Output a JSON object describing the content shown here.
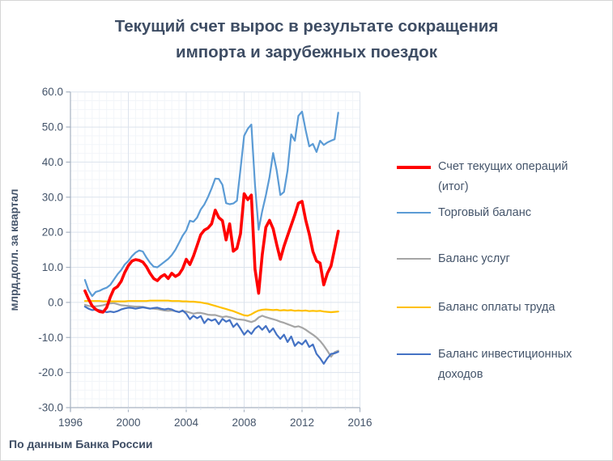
{
  "title": {
    "full": "Текущий счет вырос в результате сокращения импорта и зарубежных поездок",
    "line1": "Текущий счет вырос в результате сокращения",
    "line2": "импорта и зарубежных поездок"
  },
  "source_note": "По данным Банка России",
  "colors": {
    "text": "#44546a",
    "grid_major": "#dce3ed",
    "grid_minor": "#f2f5f9",
    "axis": "#a7b2c1",
    "current_account": "#ff0000",
    "trade_balance": "#5b9bd5",
    "services_balance": "#a5a5a5",
    "labor_balance": "#ffc000",
    "investment_income_balance": "#4472c4"
  },
  "chart_data": {
    "type": "line",
    "title": "Текущий счет вырос в результате сокращения импорта и зарубежных поездок",
    "title_lines": [
      "Текущий счет вырос в результате сокращения",
      "импорта и зарубежных поездок"
    ],
    "xlabel": "",
    "ylabel": "млрд.долл. за квартал",
    "x_axis": {
      "min": 1996,
      "max": 2016,
      "major_step": 4,
      "minor_step": 0.5,
      "tick_labels": [
        "1996",
        "2000",
        "2004",
        "2008",
        "2012",
        "2016"
      ],
      "tick_values": [
        1996,
        2000,
        2004,
        2008,
        2012,
        2016
      ]
    },
    "y_axis": {
      "label": "млрд.долл. за квартал",
      "min": -30,
      "max": 60,
      "major_step": 10,
      "minor_step": 2.5,
      "tick_labels": [
        "60.0",
        "50.0",
        "40.0",
        "30.0",
        "20.0",
        "10.0",
        "0.0",
        "-10.0",
        "-20.0",
        "-30.0"
      ],
      "tick_values": [
        60,
        50,
        40,
        30,
        20,
        10,
        0,
        -10,
        -20,
        -30
      ]
    },
    "grid": "major+minor",
    "legend_position": "right",
    "x_start": 1997.0,
    "x_step": 0.25,
    "x_unit": "quarter (year fraction)",
    "series": [
      {
        "key": "current-account",
        "name": "Счет текущих операций (итог)",
        "color": "#ff0000",
        "stroke_width": 3.6,
        "values": [
          3.3,
          1.0,
          -1.0,
          -2.0,
          -2.6,
          -2.8,
          -1.5,
          1.5,
          3.8,
          4.5,
          6.0,
          8.5,
          10.5,
          11.8,
          12.2,
          12.0,
          11.5,
          10.2,
          8.3,
          6.8,
          6.2,
          7.3,
          7.9,
          6.8,
          8.3,
          7.4,
          8.0,
          9.6,
          12.3,
          10.8,
          13.2,
          16.2,
          19.3,
          20.6,
          21.2,
          22.4,
          26.3,
          24.2,
          23.3,
          17.8,
          22.4,
          14.6,
          15.4,
          19.6,
          31.0,
          29.3,
          30.6,
          9.5,
          2.6,
          13.5,
          21.4,
          23.4,
          21.0,
          16.5,
          12.3,
          16.0,
          19.0,
          22.0,
          25.0,
          28.3,
          28.8,
          23.5,
          19.5,
          14.5,
          11.8,
          11.2,
          5.0,
          8.3,
          10.4,
          15.2,
          20.3
        ]
      },
      {
        "key": "trade-balance",
        "name": "Торговый баланс",
        "color": "#5b9bd5",
        "stroke_width": 2.2,
        "values": [
          6.4,
          3.5,
          1.8,
          3.0,
          3.3,
          3.8,
          4.2,
          5.0,
          6.5,
          8.0,
          9.2,
          10.8,
          11.8,
          13.2,
          14.2,
          14.8,
          14.5,
          12.8,
          11.3,
          10.2,
          10.0,
          10.8,
          11.6,
          12.4,
          13.5,
          15.0,
          17.0,
          19.0,
          20.5,
          23.3,
          23.0,
          24.2,
          26.5,
          27.9,
          30.0,
          32.5,
          35.3,
          35.2,
          33.5,
          28.3,
          28.0,
          28.2,
          29.0,
          38.0,
          47.5,
          49.5,
          50.7,
          33.5,
          20.7,
          26.0,
          30.5,
          35.7,
          42.6,
          37.6,
          30.6,
          31.5,
          37.6,
          47.9,
          46.1,
          53.2,
          54.4,
          49.1,
          44.5,
          45.2,
          42.9,
          46.1,
          44.9,
          45.6,
          46.1,
          46.5,
          54.1
        ]
      },
      {
        "key": "services-balance",
        "name": "Баланс услуг",
        "color": "#a5a5a5",
        "stroke_width": 2.2,
        "values": [
          -0.7,
          -1.0,
          -1.2,
          -1.1,
          -1.0,
          -0.8,
          -0.5,
          -0.3,
          -0.2,
          -0.5,
          -0.8,
          -0.9,
          -1.0,
          -1.1,
          -1.2,
          -1.2,
          -1.3,
          -1.5,
          -1.7,
          -1.8,
          -1.9,
          -2.1,
          -2.3,
          -2.4,
          -2.3,
          -2.5,
          -2.7,
          -2.5,
          -2.6,
          -2.9,
          -3.2,
          -3.0,
          -3.0,
          -3.2,
          -3.5,
          -3.6,
          -3.6,
          -3.9,
          -4.2,
          -4.0,
          -4.2,
          -4.5,
          -4.8,
          -4.9,
          -5.0,
          -5.3,
          -5.6,
          -5.2,
          -4.3,
          -3.8,
          -4.2,
          -4.5,
          -4.8,
          -5.1,
          -5.5,
          -5.8,
          -6.2,
          -6.6,
          -7.0,
          -6.8,
          -7.2,
          -7.8,
          -8.5,
          -9.2,
          -10.0,
          -11.0,
          -12.3,
          -13.8,
          -15.5,
          -14.2,
          -13.8
        ]
      },
      {
        "key": "labor-balance",
        "name": "Баланс оплаты труда",
        "color": "#ffc000",
        "stroke_width": 2.2,
        "values": [
          0.4,
          0.4,
          0.4,
          0.4,
          0.4,
          0.3,
          0.3,
          0.3,
          0.3,
          0.3,
          0.3,
          0.3,
          0.4,
          0.4,
          0.4,
          0.4,
          0.4,
          0.4,
          0.5,
          0.5,
          0.5,
          0.5,
          0.5,
          0.5,
          0.4,
          0.4,
          0.4,
          0.3,
          0.3,
          0.2,
          0.2,
          0.1,
          0.0,
          -0.2,
          -0.4,
          -0.7,
          -1.0,
          -1.3,
          -1.6,
          -1.9,
          -2.2,
          -2.5,
          -2.9,
          -3.3,
          -3.7,
          -3.8,
          -3.4,
          -2.8,
          -2.3,
          -2.1,
          -2.0,
          -2.1,
          -2.2,
          -2.1,
          -2.3,
          -2.2,
          -2.3,
          -2.2,
          -2.4,
          -2.3,
          -2.4,
          -2.3,
          -2.5,
          -2.4,
          -2.5,
          -2.4,
          -2.6,
          -2.7,
          -2.8,
          -2.7,
          -2.6
        ]
      },
      {
        "key": "investment-income-balance",
        "name": "Баланс инвестиционных доходов",
        "color": "#4472c4",
        "stroke_width": 2.2,
        "values": [
          -1.2,
          -1.8,
          -2.2,
          -2.0,
          -2.2,
          -2.5,
          -2.8,
          -2.6,
          -2.8,
          -2.5,
          -2.0,
          -1.7,
          -1.5,
          -1.6,
          -1.8,
          -1.6,
          -1.4,
          -1.6,
          -1.8,
          -1.6,
          -1.5,
          -1.8,
          -2.0,
          -1.8,
          -2.0,
          -2.5,
          -2.8,
          -2.3,
          -3.2,
          -4.8,
          -3.8,
          -4.5,
          -3.9,
          -5.9,
          -4.7,
          -5.2,
          -4.8,
          -6.2,
          -4.7,
          -5.5,
          -5.0,
          -7.0,
          -6.0,
          -7.5,
          -9.2,
          -8.0,
          -9.0,
          -7.5,
          -6.7,
          -7.8,
          -6.7,
          -8.5,
          -7.4,
          -9.2,
          -10.4,
          -9.2,
          -11.3,
          -9.7,
          -12.4,
          -11.3,
          -12.0,
          -10.8,
          -12.7,
          -12.0,
          -14.7,
          -15.9,
          -17.5,
          -15.9,
          -14.7,
          -14.5,
          -14.1
        ]
      }
    ]
  }
}
